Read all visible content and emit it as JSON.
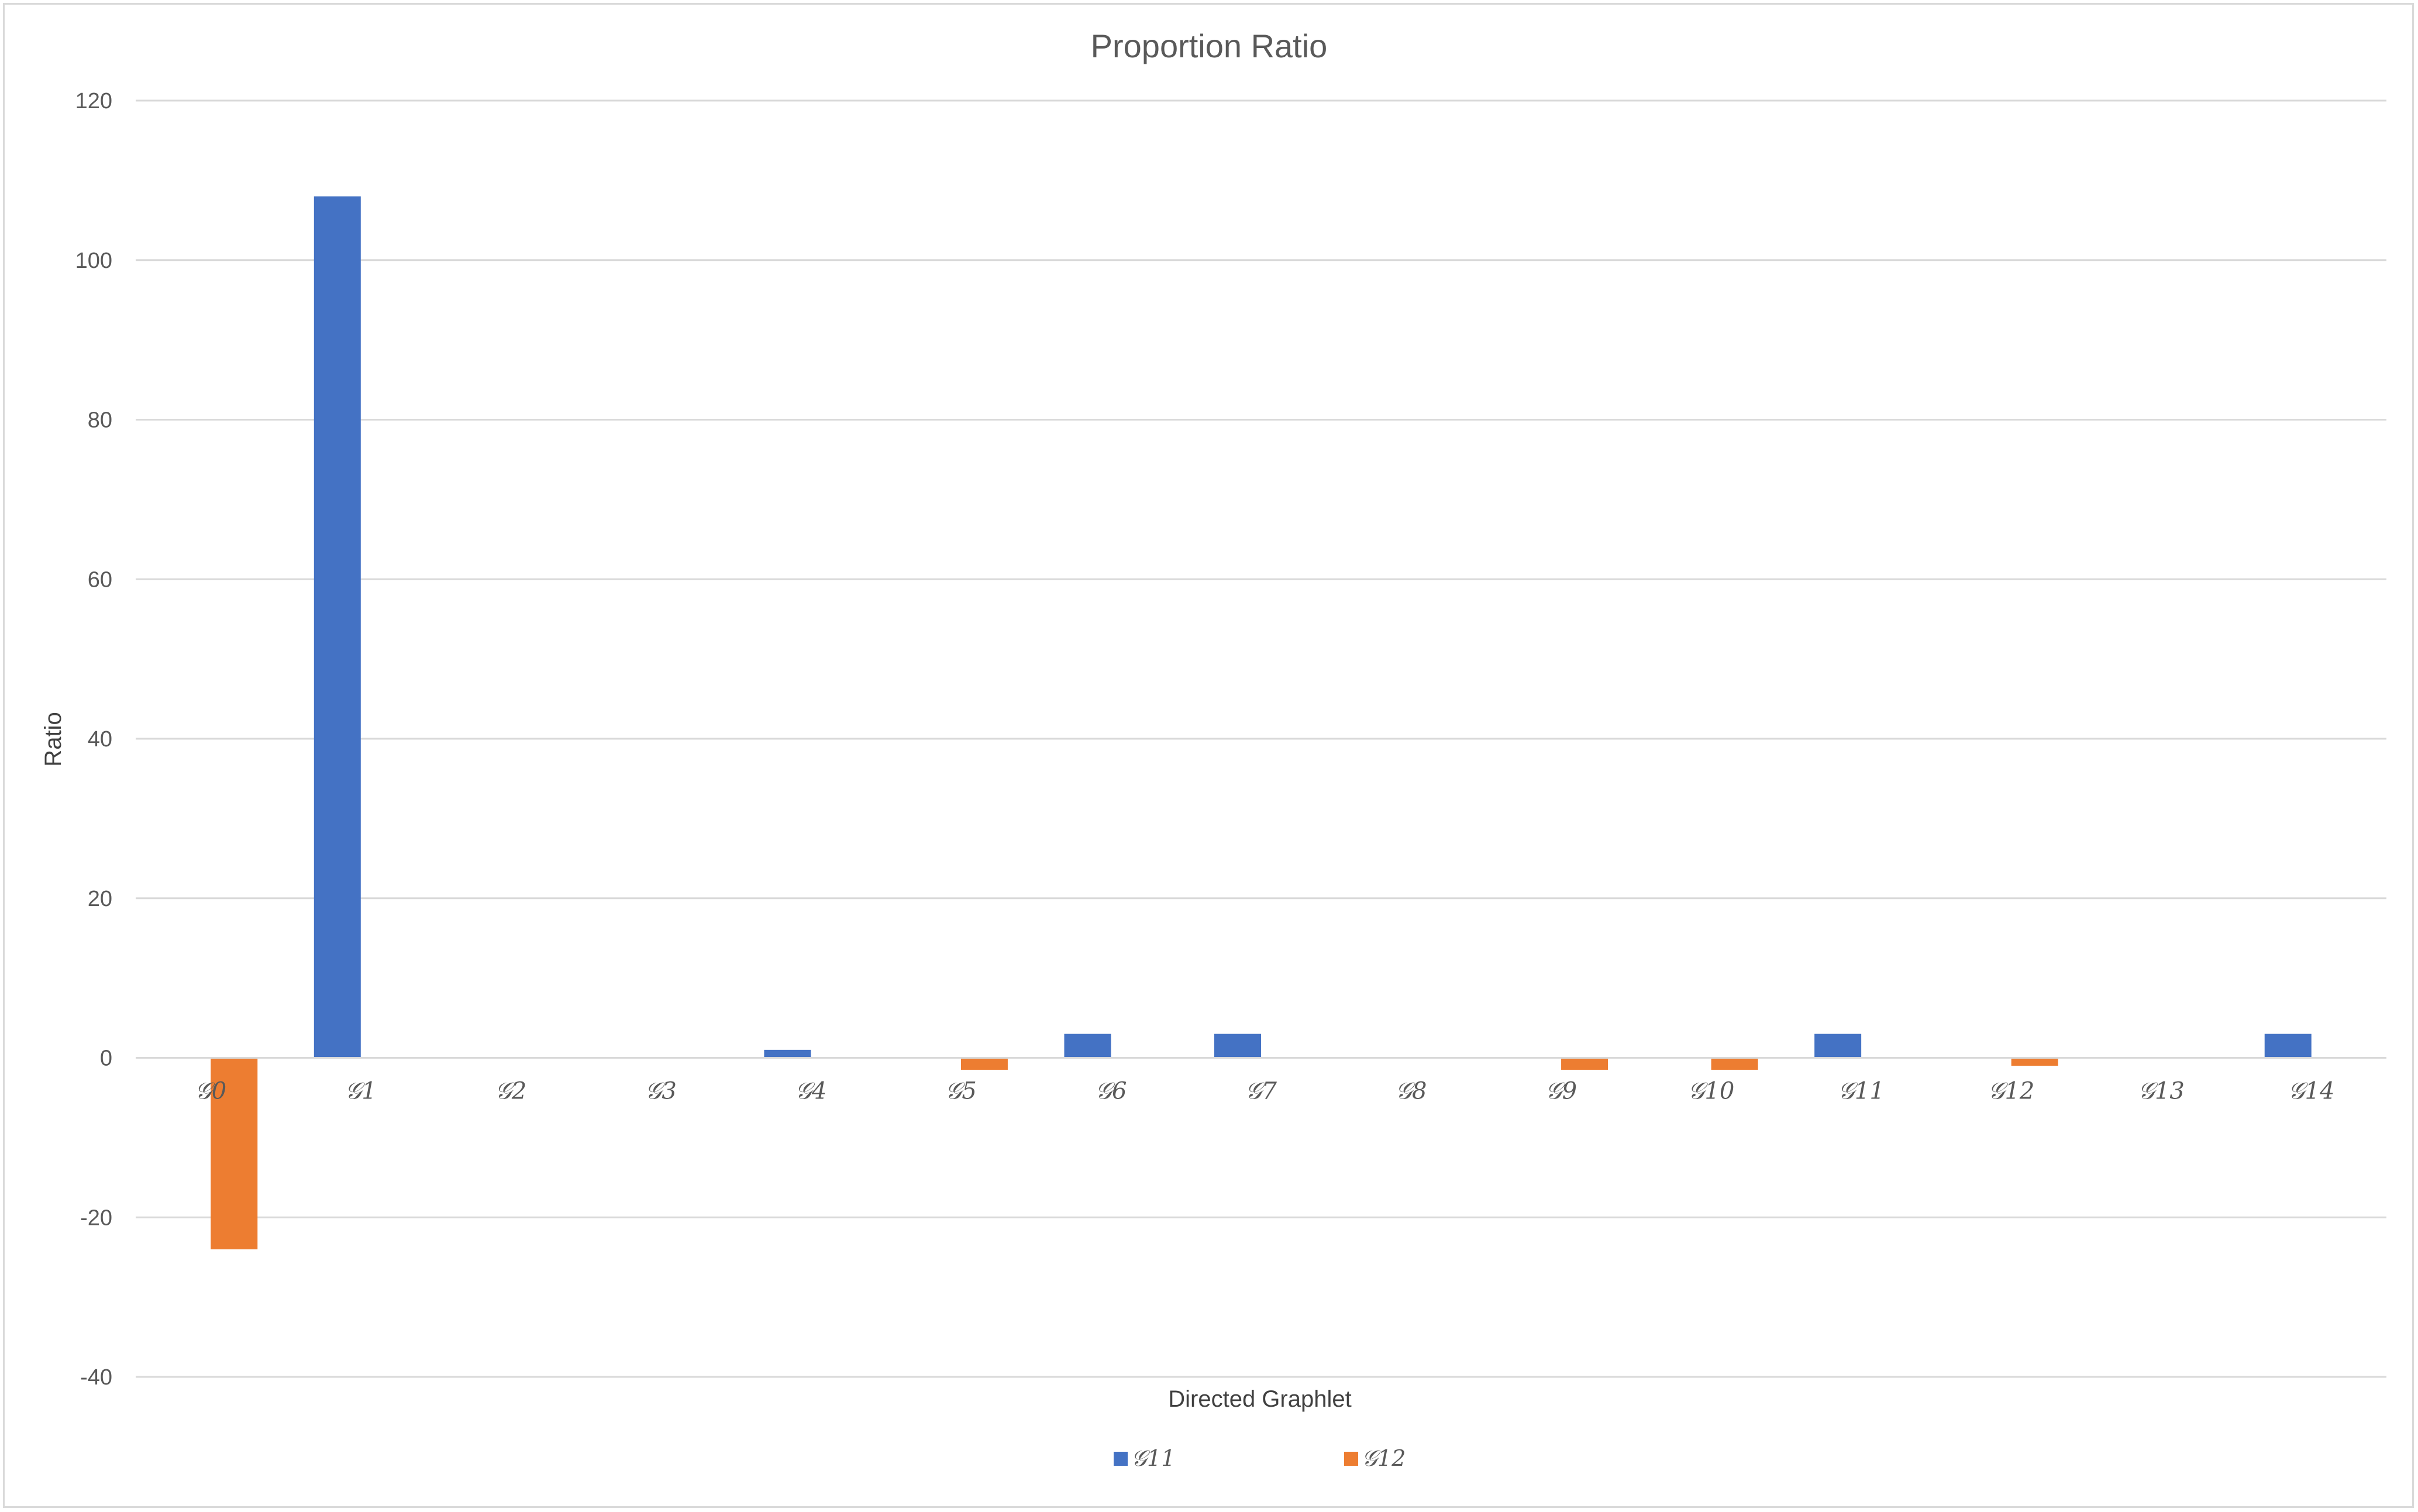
{
  "chart_data": {
    "type": "bar",
    "title": "Proportion Ratio",
    "xlabel": "Directed Graphlet",
    "ylabel": "Ratio",
    "ylim": [
      -40,
      120
    ],
    "yticks": [
      -40,
      -20,
      0,
      20,
      40,
      60,
      80,
      100,
      120
    ],
    "grid": true,
    "legend_position": "bottom",
    "categories": [
      "𝒢0",
      "𝒢1",
      "𝒢2",
      "𝒢3",
      "𝒢4",
      "𝒢5",
      "𝒢6",
      "𝒢7",
      "𝒢8",
      "𝒢9",
      "𝒢10",
      "𝒢11",
      "𝒢12",
      "𝒢13",
      "𝒢14"
    ],
    "series": [
      {
        "name": "𝒢11",
        "color": "#4472c4",
        "values": [
          0,
          108,
          0,
          0,
          1,
          0,
          3,
          3,
          0,
          0,
          0,
          3,
          0,
          0,
          3
        ]
      },
      {
        "name": "𝒢12",
        "color": "#ed7d31",
        "values": [
          -24,
          0,
          0,
          0,
          0,
          -1.5,
          0,
          0,
          0,
          -1.5,
          -1.5,
          0,
          -1,
          0,
          0
        ]
      }
    ]
  }
}
